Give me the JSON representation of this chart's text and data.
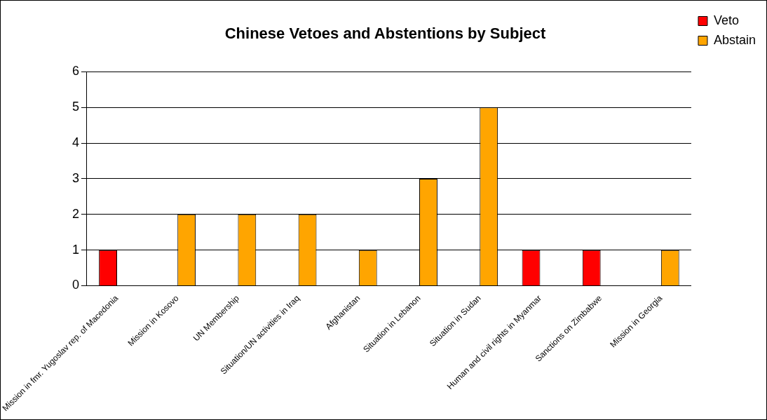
{
  "chart_data": {
    "type": "bar",
    "title": "Chinese Vetoes and Abstentions by Subject",
    "categories": [
      "Mission in fmr. Yugoslav rep. of Macedonia",
      "Mission in Kosovo",
      "UN Membership",
      "Situation/UN activities in Iraq",
      "Afghanistan",
      "Situation in Lebanon",
      "Situation in Sudan",
      "Human and civil rights in Myanmar",
      "Sanctions on Zimbabwe",
      "Mission in Georgia"
    ],
    "series": [
      {
        "name": "Veto",
        "color": "#ff0000",
        "values": [
          1,
          0,
          0,
          0,
          0,
          0,
          0,
          1,
          1,
          0
        ]
      },
      {
        "name": "Abstain",
        "color": "#ffa500",
        "values": [
          0,
          2,
          2,
          2,
          1,
          3,
          5,
          0,
          0,
          1
        ]
      }
    ],
    "ylim": [
      0,
      6
    ],
    "yticks": [
      0,
      1,
      2,
      3,
      4,
      5,
      6
    ],
    "grid": "y",
    "legend": "right"
  }
}
